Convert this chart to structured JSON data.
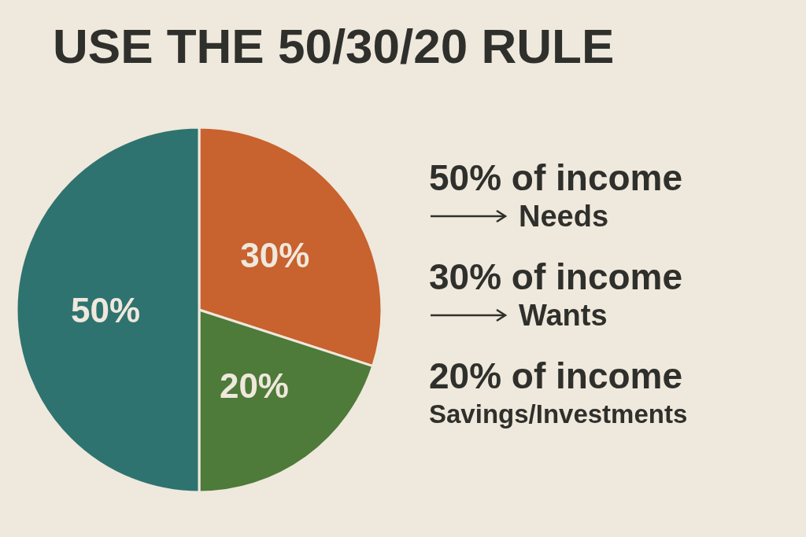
{
  "chart_data": {
    "type": "pie",
    "title": "USE THE 50/30/20 RULE",
    "categories": [
      null,
      null,
      null
    ],
    "values": [
      30,
      20,
      50
    ],
    "colors": [
      "#c8622e",
      "#4e7a3a",
      "#2e7370"
    ],
    "value_labels": [
      "30%",
      "20%",
      "50%"
    ],
    "annotations": [
      "50% of income",
      "Needs",
      "30% of income",
      "Wants",
      "20% of income",
      "Savings/Investments"
    ]
  }
}
